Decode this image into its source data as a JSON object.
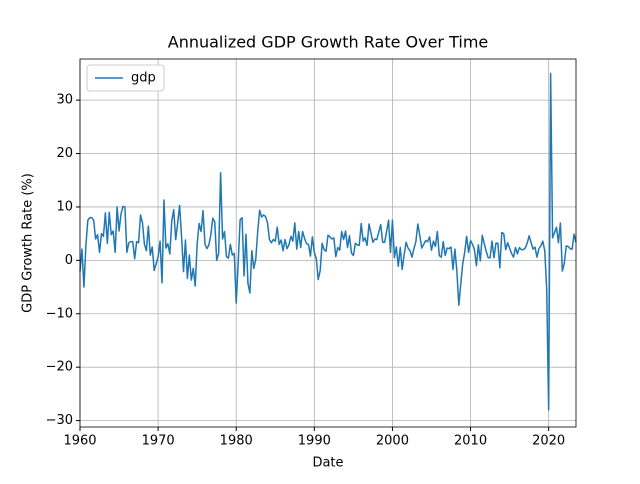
{
  "chart_data": {
    "type": "line",
    "title": "Annualized GDP Growth Rate Over Time",
    "xlabel": "Date",
    "ylabel": "GDP Growth Rate (%)",
    "x": [
      1960,
      1960.25,
      1960.5,
      1960.75,
      1961,
      1961.25,
      1961.5,
      1961.75,
      1962,
      1962.25,
      1962.5,
      1962.75,
      1963,
      1963.25,
      1963.5,
      1963.75,
      1964,
      1964.25,
      1964.5,
      1964.75,
      1965,
      1965.25,
      1965.5,
      1965.75,
      1966,
      1966.25,
      1966.5,
      1966.75,
      1967,
      1967.25,
      1967.5,
      1967.75,
      1968,
      1968.25,
      1968.5,
      1968.75,
      1969,
      1969.25,
      1969.5,
      1969.75,
      1970,
      1970.25,
      1970.5,
      1970.75,
      1971,
      1971.25,
      1971.5,
      1971.75,
      1972,
      1972.25,
      1972.5,
      1972.75,
      1973,
      1973.25,
      1973.5,
      1973.75,
      1974,
      1974.25,
      1974.5,
      1974.75,
      1975,
      1975.25,
      1975.5,
      1975.75,
      1976,
      1976.25,
      1976.5,
      1976.75,
      1977,
      1977.25,
      1977.5,
      1977.75,
      1978,
      1978.25,
      1978.5,
      1978.75,
      1979,
      1979.25,
      1979.5,
      1979.75,
      1980,
      1980.25,
      1980.5,
      1980.75,
      1981,
      1981.25,
      1981.5,
      1981.75,
      1982,
      1982.25,
      1982.5,
      1982.75,
      1983,
      1983.25,
      1983.5,
      1983.75,
      1984,
      1984.25,
      1984.5,
      1984.75,
      1985,
      1985.25,
      1985.5,
      1985.75,
      1986,
      1986.25,
      1986.5,
      1986.75,
      1987,
      1987.25,
      1987.5,
      1987.75,
      1988,
      1988.25,
      1988.5,
      1988.75,
      1989,
      1989.25,
      1989.5,
      1989.75,
      1990,
      1990.25,
      1990.5,
      1990.75,
      1991,
      1991.25,
      1991.5,
      1991.75,
      1992,
      1992.25,
      1992.5,
      1992.75,
      1993,
      1993.25,
      1993.5,
      1993.75,
      1994,
      1994.25,
      1994.5,
      1994.75,
      1995,
      1995.25,
      1995.5,
      1995.75,
      1996,
      1996.25,
      1996.5,
      1996.75,
      1997,
      1997.25,
      1997.5,
      1997.75,
      1998,
      1998.25,
      1998.5,
      1998.75,
      1999,
      1999.25,
      1999.5,
      1999.75,
      2000,
      2000.25,
      2000.5,
      2000.75,
      2001,
      2001.25,
      2001.5,
      2001.75,
      2002,
      2002.25,
      2002.5,
      2002.75,
      2003,
      2003.25,
      2003.5,
      2003.75,
      2004,
      2004.25,
      2004.5,
      2004.75,
      2005,
      2005.25,
      2005.5,
      2005.75,
      2006,
      2006.25,
      2006.5,
      2006.75,
      2007,
      2007.25,
      2007.5,
      2007.75,
      2008,
      2008.25,
      2008.5,
      2008.75,
      2009,
      2009.25,
      2009.5,
      2009.75,
      2010,
      2010.25,
      2010.5,
      2010.75,
      2011,
      2011.25,
      2011.5,
      2011.75,
      2012,
      2012.25,
      2012.5,
      2012.75,
      2013,
      2013.25,
      2013.5,
      2013.75,
      2014,
      2014.25,
      2014.5,
      2014.75,
      2015,
      2015.25,
      2015.5,
      2015.75,
      2016,
      2016.25,
      2016.5,
      2016.75,
      2017,
      2017.25,
      2017.5,
      2017.75,
      2018,
      2018.25,
      2018.5,
      2018.75,
      2019,
      2019.25,
      2019.5,
      2019.75,
      2020,
      2020.25,
      2020.5,
      2020.75,
      2021,
      2021.25,
      2021.5,
      2021.75,
      2022,
      2022.25,
      2022.5,
      2022.75,
      2023,
      2023.25,
      2023.5
    ],
    "series": [
      {
        "name": "gdp",
        "color": "#1f77b4",
        "values": [
          -2.1,
          2.1,
          -5.0,
          2.7,
          7.5,
          8.0,
          8.0,
          7.5,
          4.0,
          4.8,
          1.5,
          5.0,
          4.5,
          8.9,
          3.2,
          9.0,
          4.8,
          5.5,
          1.5,
          10.0,
          5.5,
          8.7,
          10.1,
          10.0,
          1.5,
          3.3,
          3.5,
          3.5,
          0.3,
          3.5,
          3.3,
          8.5,
          7.0,
          3.0,
          1.8,
          6.4,
          1.0,
          2.5,
          -1.9,
          -0.6,
          0.6,
          3.6,
          -4.2,
          11.3,
          2.3,
          3.1,
          1.2,
          7.4,
          9.5,
          3.9,
          6.9,
          10.3,
          4.5,
          -2.1,
          3.8,
          -3.4,
          1.0,
          -3.7,
          -1.5,
          -4.8,
          3.1,
          6.9,
          5.4,
          9.3,
          3.0,
          2.2,
          2.9,
          4.8,
          7.9,
          7.2,
          0.0,
          1.3,
          16.4,
          4.0,
          5.4,
          0.7,
          0.4,
          3.0,
          1.0,
          1.3,
          -8.0,
          -0.5,
          7.6,
          8.0,
          -2.9,
          4.9,
          -4.3,
          -6.1,
          1.8,
          -1.5,
          0.2,
          5.4,
          9.4,
          8.1,
          8.5,
          8.2,
          7.1,
          3.9,
          3.3,
          3.9,
          3.6,
          6.2,
          3.0,
          3.8,
          1.8,
          3.9,
          2.2,
          2.9,
          4.5,
          3.6,
          7.0,
          2.1,
          5.4,
          2.4,
          5.4,
          4.1,
          3.1,
          3.0,
          0.8,
          4.4,
          1.5,
          0.3,
          -3.6,
          -1.9,
          3.2,
          2.0,
          1.7,
          4.7,
          4.4,
          4.0,
          4.2,
          0.7,
          2.4,
          1.9,
          5.4,
          3.9,
          5.5,
          2.4,
          4.6,
          1.4,
          0.9,
          3.2,
          2.9,
          2.8,
          6.9,
          3.6,
          4.2,
          2.8,
          6.8,
          5.1,
          3.4,
          4.0,
          3.9,
          5.3,
          6.7,
          3.4,
          3.4,
          5.4,
          7.5,
          1.5,
          7.5,
          0.5,
          2.5,
          -1.1,
          2.4,
          -1.7,
          1.1,
          3.4,
          2.3,
          1.8,
          0.6,
          2.2,
          3.5,
          6.8,
          4.7,
          2.3,
          3.0,
          3.7,
          3.5,
          4.4,
          1.9,
          3.6,
          2.6,
          5.4,
          0.9,
          0.6,
          3.5,
          0.9,
          2.3,
          2.2,
          2.5,
          -1.7,
          2.1,
          -2.1,
          -8.4,
          -4.4,
          -0.6,
          1.5,
          4.5,
          1.5,
          3.7,
          3.0,
          2.0,
          -1.0,
          2.9,
          -0.1,
          4.7,
          3.2,
          1.7,
          0.5,
          0.5,
          3.6,
          0.5,
          3.2,
          3.2,
          -1.4,
          5.2,
          5.0,
          2.0,
          3.3,
          2.3,
          1.3,
          0.6,
          2.4,
          1.2,
          2.4,
          2.0,
          2.0,
          2.3,
          3.2,
          4.6,
          3.3,
          2.1,
          2.5,
          0.6,
          2.2,
          2.7,
          3.6,
          1.8,
          -5.5,
          -28.0,
          35.0,
          4.2,
          5.2,
          6.2,
          3.3,
          7.0,
          -2.0,
          -0.6,
          2.7,
          2.6,
          2.2,
          2.1,
          4.9,
          3.4
        ]
      }
    ],
    "xlim": [
      1960,
      2023.5
    ],
    "xticks": [
      1960,
      1970,
      1980,
      1990,
      2000,
      2010,
      2020
    ],
    "ylim": [
      -31.2,
      37.7
    ],
    "yticks": [
      {
        "value": -30,
        "label": "−30"
      },
      {
        "value": -20,
        "label": "−20"
      },
      {
        "value": -10,
        "label": "−10"
      },
      0,
      10,
      20,
      30
    ],
    "grid": true,
    "legend": "upper left"
  }
}
